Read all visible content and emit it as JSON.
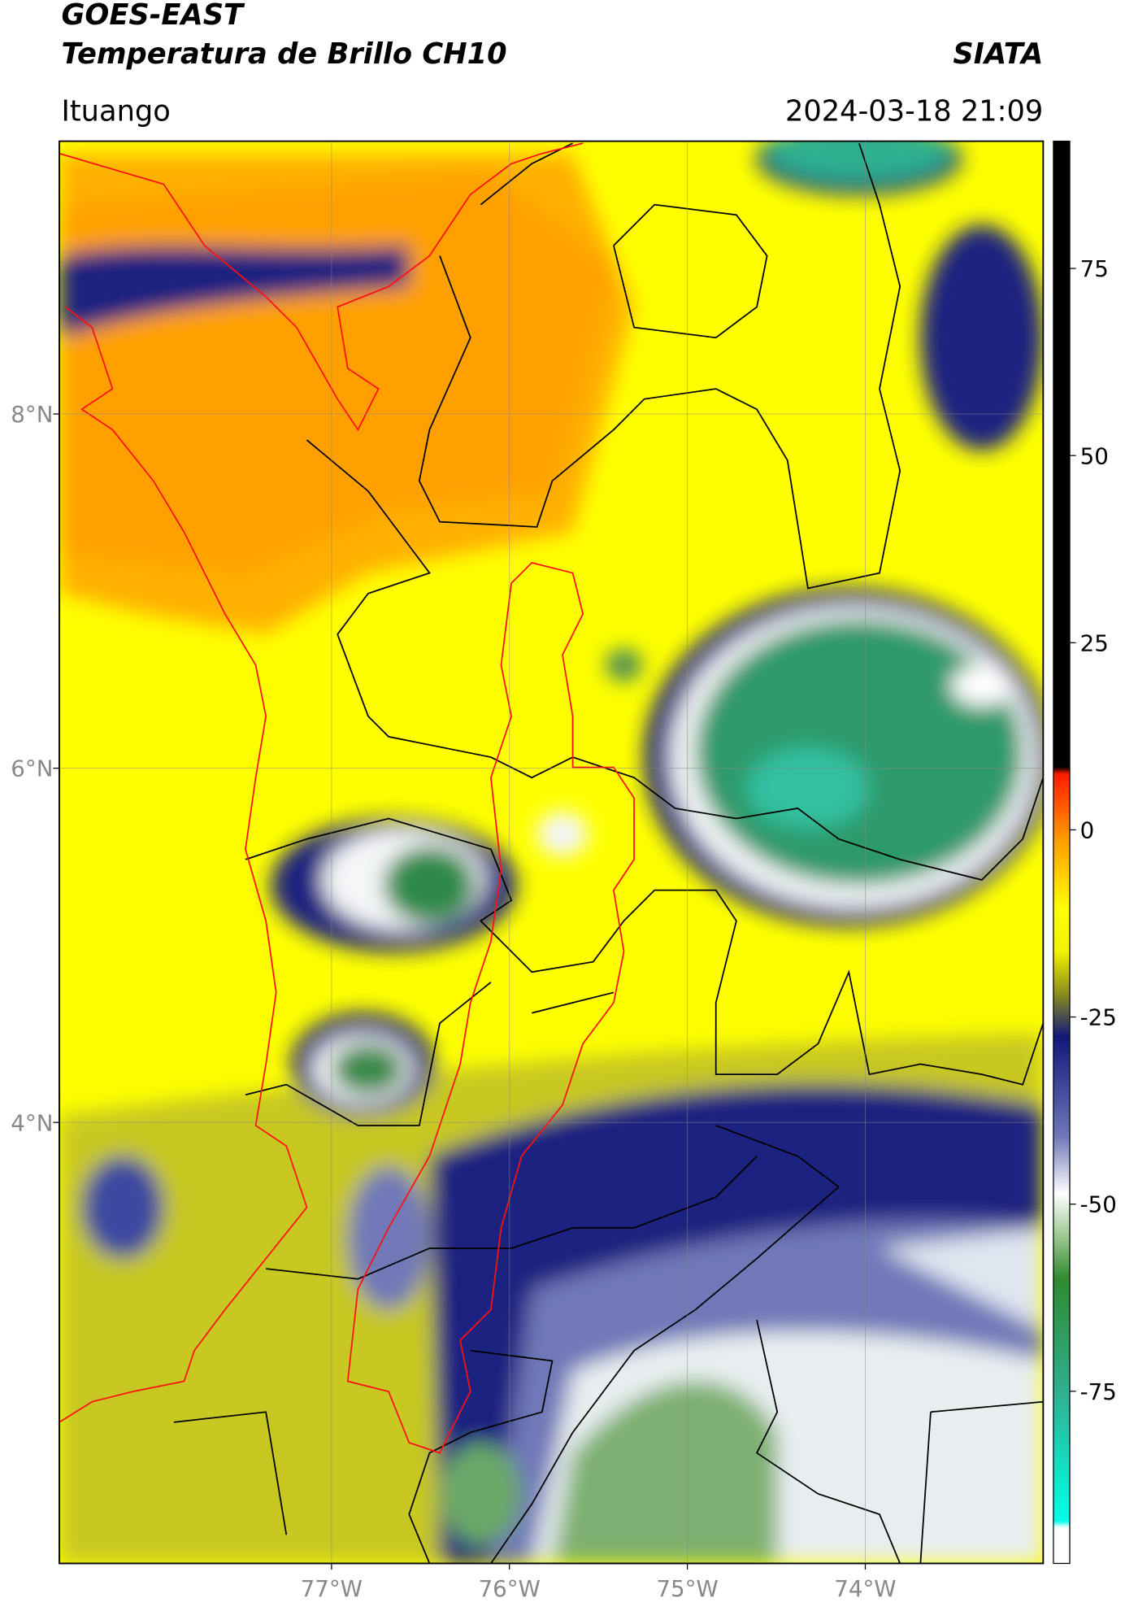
{
  "map": {
    "title": "GOES-EAST",
    "subtitle": "Temperatura de Brillo CH10",
    "source": "SIATA",
    "location": "Ituango",
    "timestamp": "2024-03-18 21:09",
    "xlim": [
      -78.53,
      -73.0
    ],
    "ylim": [
      1.51,
      9.54
    ],
    "xticks": [
      {
        "value": -77,
        "label": "77°W"
      },
      {
        "value": -76,
        "label": "76°W"
      },
      {
        "value": -75,
        "label": "75°W"
      },
      {
        "value": -74,
        "label": "74°W"
      }
    ],
    "yticks": [
      {
        "value": 8,
        "label": "8°N"
      },
      {
        "value": 6,
        "label": "6°N"
      },
      {
        "value": 4,
        "label": "4°N"
      }
    ],
    "grid": true,
    "colorbar": {
      "lim": [
        -98,
        92
      ],
      "ticks": [
        75,
        50,
        25,
        0,
        -25,
        -50,
        -75
      ]
    }
  }
}
